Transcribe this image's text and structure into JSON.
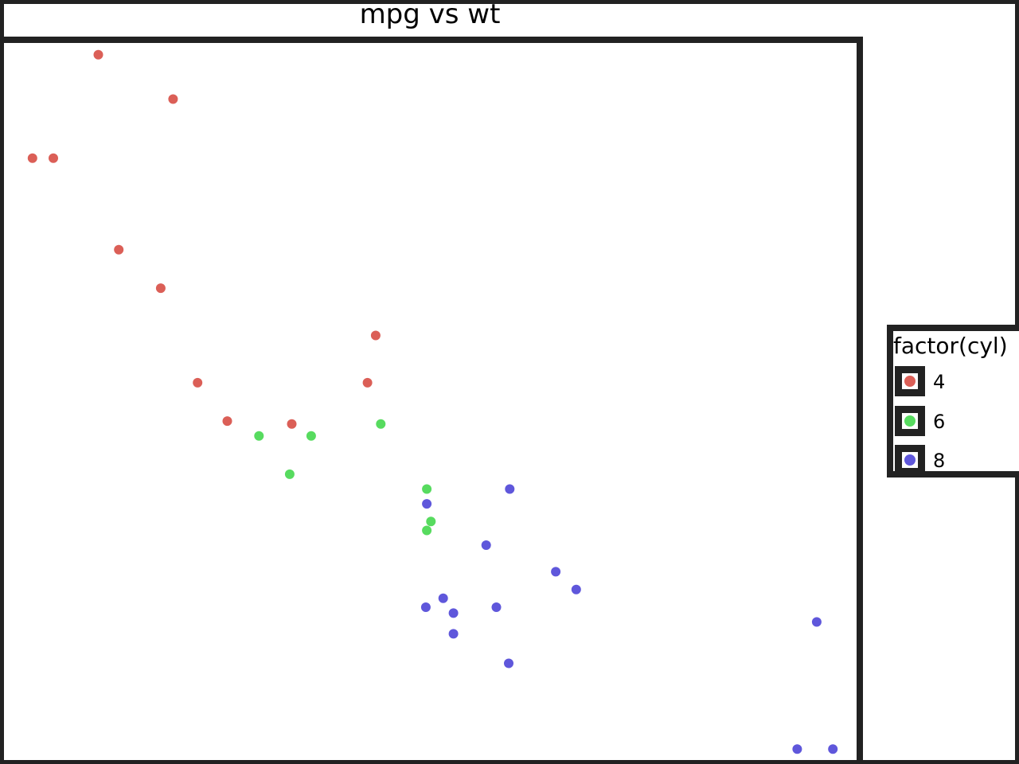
{
  "chart_data": {
    "type": "scatter",
    "title": "mpg vs wt",
    "xlabel": "",
    "ylabel": "",
    "xlim": [
      1.37,
      5.54
    ],
    "ylim": [
      10.0,
      34.3
    ],
    "grid": false,
    "legend_title": "factor(cyl)",
    "legend_placement": "right",
    "series": [
      {
        "name": "4",
        "color": "#db5f57",
        "points": [
          {
            "x": 2.32,
            "y": 22.8
          },
          {
            "x": 3.19,
            "y": 24.4
          },
          {
            "x": 3.15,
            "y": 22.8
          },
          {
            "x": 2.2,
            "y": 32.4
          },
          {
            "x": 1.615,
            "y": 30.4
          },
          {
            "x": 1.835,
            "y": 33.9
          },
          {
            "x": 2.465,
            "y": 21.5
          },
          {
            "x": 1.935,
            "y": 27.3
          },
          {
            "x": 2.14,
            "y": 26.0
          },
          {
            "x": 1.513,
            "y": 30.4
          },
          {
            "x": 2.78,
            "y": 21.4
          }
        ]
      },
      {
        "name": "6",
        "color": "#57db5f",
        "points": [
          {
            "x": 2.62,
            "y": 21.0
          },
          {
            "x": 2.875,
            "y": 21.0
          },
          {
            "x": 3.215,
            "y": 21.4
          },
          {
            "x": 3.46,
            "y": 18.1
          },
          {
            "x": 3.44,
            "y": 19.2
          },
          {
            "x": 3.44,
            "y": 17.8
          },
          {
            "x": 2.77,
            "y": 19.7
          }
        ]
      },
      {
        "name": "8",
        "color": "#5f57db",
        "points": [
          {
            "x": 3.44,
            "y": 18.7
          },
          {
            "x": 3.57,
            "y": 14.3
          },
          {
            "x": 4.07,
            "y": 16.4
          },
          {
            "x": 3.73,
            "y": 17.3
          },
          {
            "x": 3.78,
            "y": 15.2
          },
          {
            "x": 5.25,
            "y": 10.4
          },
          {
            "x": 5.424,
            "y": 10.4
          },
          {
            "x": 5.345,
            "y": 14.7
          },
          {
            "x": 3.52,
            "y": 15.5
          },
          {
            "x": 3.435,
            "y": 15.2
          },
          {
            "x": 3.84,
            "y": 13.3
          },
          {
            "x": 3.845,
            "y": 19.2
          },
          {
            "x": 4.17,
            "y": 15.8
          },
          {
            "x": 3.57,
            "y": 15.0
          }
        ]
      }
    ]
  }
}
